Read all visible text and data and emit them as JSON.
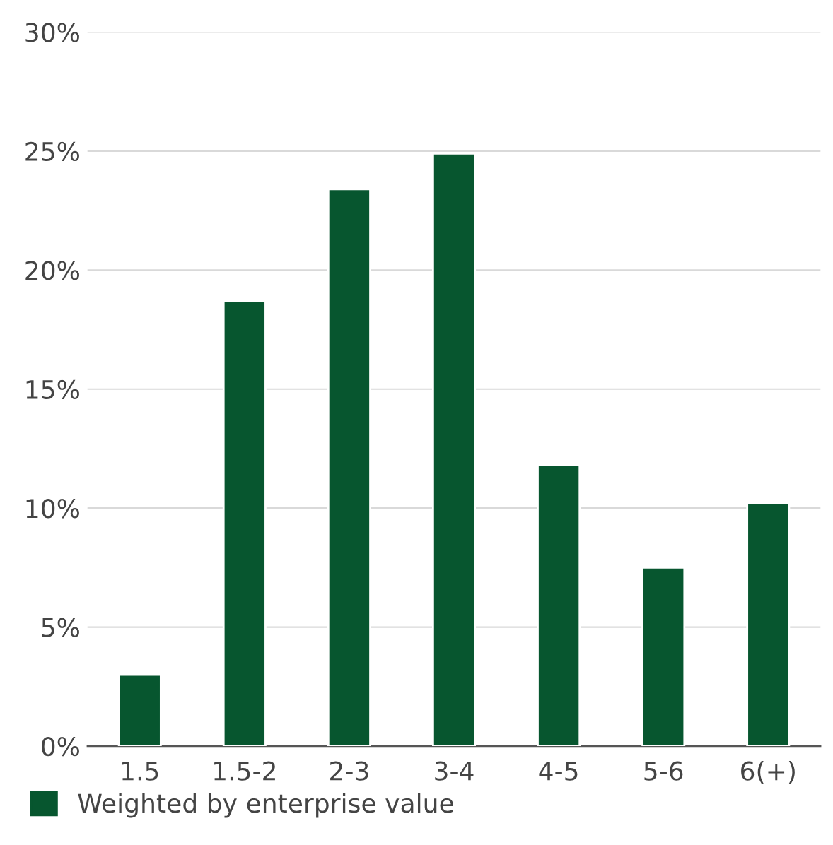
{
  "chart_data": {
    "type": "bar",
    "categories": [
      "1.5",
      "1.5-2",
      "2-3",
      "3-4",
      "4-5",
      "5-6",
      "6(+)"
    ],
    "series": [
      {
        "name": "Weighted by enterprise value",
        "color": "#07562f",
        "values": [
          3.0,
          18.7,
          23.4,
          24.9,
          11.8,
          7.5,
          10.2
        ]
      }
    ],
    "ylim": [
      0,
      30
    ],
    "yticks": [
      {
        "value": 0,
        "label": "0%"
      },
      {
        "value": 5,
        "label": "5%"
      },
      {
        "value": 10,
        "label": "10%"
      },
      {
        "value": 15,
        "label": "15%"
      },
      {
        "value": 20,
        "label": "20%"
      },
      {
        "value": 25,
        "label": "25%"
      },
      {
        "value": 30,
        "label": "30%"
      }
    ],
    "grid": "y",
    "legend": "bottom left"
  }
}
